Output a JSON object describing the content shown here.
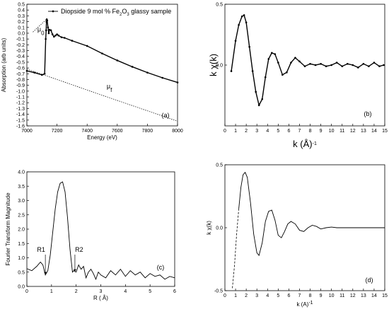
{
  "chart_data": [
    {
      "panel": "(a)",
      "type": "line",
      "xlabel": "Energy (eV)",
      "ylabel": "Absorption (arb units)",
      "xlim": [
        7000,
        8000
      ],
      "ylim": [
        -1.6,
        0.5
      ],
      "xticks": [
        "7000",
        "7200",
        "7400",
        "7600",
        "7800",
        "8000"
      ],
      "yticks": [
        "0.5",
        "0.4",
        "0.3",
        "0.2",
        "0.1",
        "0.0",
        "-0.1",
        "-0.2",
        "-0.3",
        "-0.4",
        "-0.5",
        "-0.6",
        "-0.7",
        "-0.8",
        "-0.9",
        "-1.0",
        "-1.1",
        "-1.2",
        "-1.3",
        "-1.4",
        "-1.5",
        "-1.6"
      ],
      "legend": {
        "placement": "top-right",
        "label_pre": "Diopside 9 mol % Fe",
        "label_sub1": "2",
        "label_mid": "O",
        "label_sub2": "3",
        "label_post": " glassy sample"
      },
      "annotations": {
        "mu0": "μ",
        "mu0_sub": "0",
        "muf": "μ",
        "muf_sub": "f"
      },
      "series": [
        {
          "style": "points",
          "x": [
            7000,
            7050,
            7100,
            7118,
            7125,
            7128,
            7130,
            7132,
            7135,
            7140,
            7145,
            7150,
            7160,
            7170,
            7180,
            7190,
            7200,
            7210,
            7230,
            7250,
            7300,
            7400,
            7500,
            7600,
            7700,
            7800,
            7900,
            8000
          ],
          "y": [
            -0.65,
            -0.68,
            -0.72,
            -0.7,
            -0.1,
            0.05,
            0.2,
            0.24,
            0.22,
            0.1,
            0.0,
            0.06,
            0.05,
            -0.02,
            -0.06,
            -0.04,
            -0.02,
            -0.04,
            -0.07,
            -0.08,
            -0.13,
            -0.22,
            -0.35,
            -0.47,
            -0.58,
            -0.68,
            -0.77,
            -0.85
          ]
        },
        {
          "style": "dotted",
          "x": [
            7000,
            8000
          ],
          "y": [
            -0.62,
            -1.52
          ]
        },
        {
          "style": "dotted",
          "x": [
            7040,
            7130
          ],
          "y": [
            0.02,
            0.24
          ]
        }
      ]
    },
    {
      "panel": "(b)",
      "type": "line",
      "xlabel": "k (Å)",
      "xlabel_sup": "-1",
      "ylabel": "k χ(k)",
      "xlim": [
        0,
        15
      ],
      "ylim": [
        -0.5,
        0.5
      ],
      "xticks": [
        "0",
        "1",
        "2",
        "3",
        "4",
        "5",
        "6",
        "7",
        "8",
        "9",
        "10",
        "11",
        "12",
        "13",
        "14",
        "15"
      ],
      "yticks": [
        "0.5",
        "0.0"
      ],
      "series": [
        {
          "style": "points",
          "x": [
            0.6,
            1.0,
            1.3,
            1.6,
            1.8,
            2.0,
            2.3,
            2.6,
            2.9,
            3.2,
            3.5,
            3.8,
            4.1,
            4.4,
            4.7,
            5.0,
            5.4,
            5.8,
            6.2,
            6.6,
            7.0,
            7.5,
            8.0,
            8.5,
            9.0,
            9.5,
            10,
            10.5,
            11,
            11.5,
            12,
            12.5,
            13,
            13.5,
            14,
            14.5,
            14.9
          ],
          "y": [
            -0.05,
            0.2,
            0.33,
            0.4,
            0.41,
            0.35,
            0.15,
            -0.05,
            -0.22,
            -0.33,
            -0.28,
            -0.1,
            0.05,
            0.1,
            0.09,
            0.02,
            -0.08,
            -0.06,
            0.02,
            0.06,
            0.03,
            -0.01,
            0.01,
            0.0,
            0.01,
            -0.01,
            0.0,
            0.02,
            -0.01,
            0.01,
            0.0,
            -0.02,
            0.01,
            -0.01,
            0.02,
            -0.01,
            0.0
          ]
        }
      ]
    },
    {
      "panel": "(c)",
      "type": "line",
      "xlabel": "R ( Å)",
      "ylabel": "Fourier Transform Magnitude",
      "xlim": [
        0,
        6
      ],
      "ylim": [
        0,
        4.0
      ],
      "xticks": [
        "0",
        "1",
        "2",
        "3",
        "4",
        "5",
        "6"
      ],
      "yticks": [
        "4.0",
        "3.5",
        "3.0",
        "2.5",
        "2.0",
        "1.5",
        "1.0",
        "0.5",
        "0.0"
      ],
      "annotations": {
        "r1": "R1",
        "r2": "R2"
      },
      "series": [
        {
          "style": "line",
          "x": [
            0,
            0.2,
            0.4,
            0.55,
            0.65,
            0.75,
            0.85,
            0.95,
            1.05,
            1.15,
            1.25,
            1.35,
            1.45,
            1.55,
            1.65,
            1.75,
            1.85,
            1.9,
            2.0,
            2.1,
            2.2,
            2.3,
            2.4,
            2.5,
            2.6,
            2.7,
            2.8,
            2.9,
            3.0,
            3.2,
            3.4,
            3.6,
            3.8,
            4.0,
            4.2,
            4.4,
            4.6,
            4.8,
            5.0,
            5.2,
            5.4,
            5.6,
            5.8,
            6.0
          ],
          "y": [
            0.62,
            0.55,
            0.7,
            0.85,
            0.75,
            0.4,
            0.55,
            1.1,
            1.9,
            2.7,
            3.3,
            3.6,
            3.65,
            3.3,
            2.4,
            1.3,
            0.5,
            0.55,
            0.5,
            0.75,
            0.6,
            0.7,
            0.3,
            0.5,
            0.6,
            0.45,
            0.25,
            0.5,
            0.4,
            0.3,
            0.55,
            0.4,
            0.6,
            0.35,
            0.55,
            0.4,
            0.5,
            0.3,
            0.45,
            0.35,
            0.4,
            0.25,
            0.35,
            0.3
          ]
        }
      ]
    },
    {
      "panel": "(d)",
      "type": "line",
      "xlabel": "k (A)",
      "xlabel_sup": "-1",
      "ylabel": "k χ(k)",
      "xlim": [
        0,
        15
      ],
      "ylim": [
        -0.5,
        0.5
      ],
      "xticks": [
        "0",
        "1",
        "2",
        "3",
        "4",
        "5",
        "6",
        "7",
        "8",
        "9",
        "10",
        "11",
        "12",
        "13",
        "14",
        "15"
      ],
      "yticks": [
        "0.5",
        "0.0",
        "-0.5"
      ],
      "series": [
        {
          "style": "dashed",
          "x": [
            0.7,
            0.9,
            1.1,
            1.3
          ],
          "y": [
            -0.48,
            -0.3,
            -0.05,
            0.15
          ]
        },
        {
          "style": "line",
          "x": [
            1.3,
            1.5,
            1.7,
            1.9,
            2.1,
            2.4,
            2.7,
            3.0,
            3.2,
            3.5,
            3.8,
            4.1,
            4.4,
            4.7,
            5.0,
            5.3,
            5.6,
            5.9,
            6.2,
            6.6,
            7.0,
            7.4,
            7.8,
            8.2,
            8.6,
            9.0,
            9.5,
            10.0,
            10.5,
            11,
            12,
            13,
            14,
            15
          ],
          "y": [
            0.15,
            0.32,
            0.42,
            0.44,
            0.4,
            0.2,
            -0.05,
            -0.2,
            -0.22,
            -0.12,
            0.05,
            0.13,
            0.14,
            0.06,
            -0.06,
            -0.08,
            -0.03,
            0.03,
            0.05,
            0.03,
            -0.02,
            -0.03,
            0.0,
            0.02,
            0.01,
            -0.01,
            0.0,
            0.005,
            0.0,
            0.0,
            0.0,
            0.0,
            0.0,
            0.0
          ]
        }
      ]
    }
  ]
}
